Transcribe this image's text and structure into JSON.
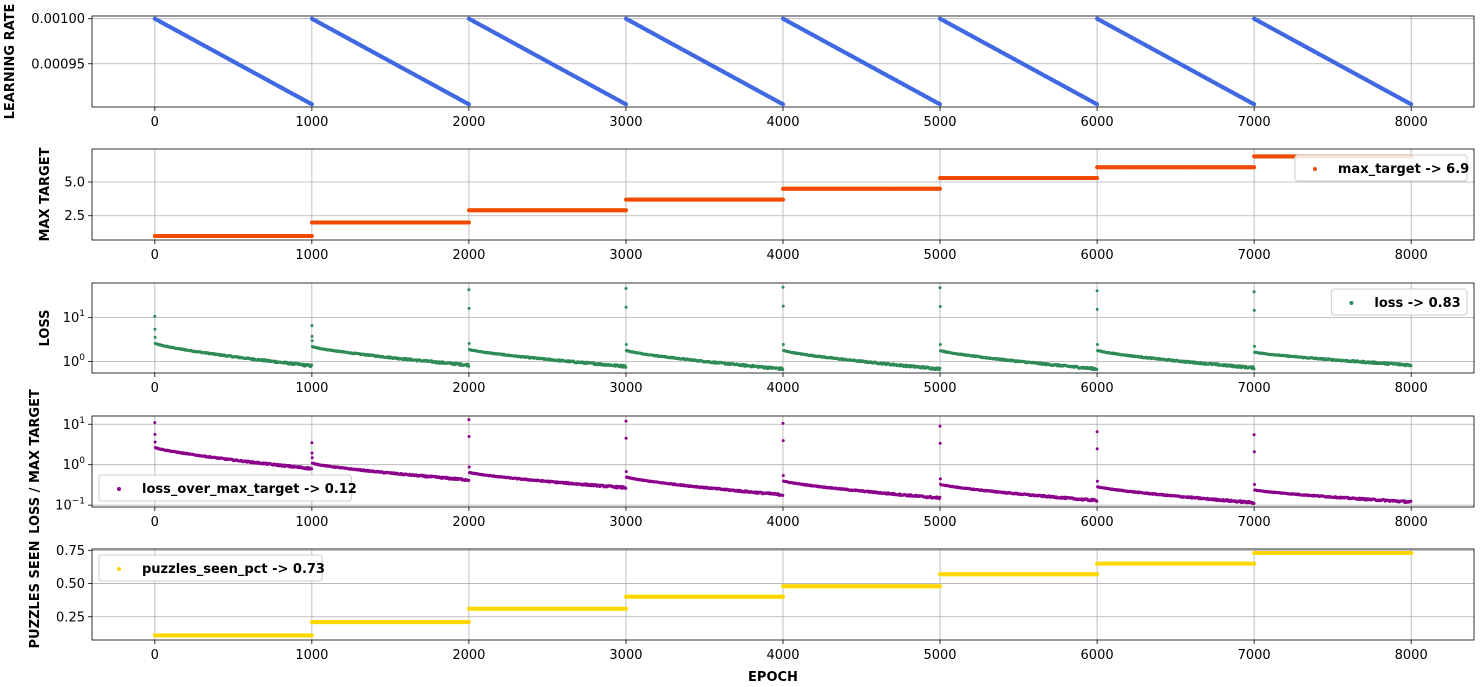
{
  "chart_data": [
    {
      "type": "scatter",
      "ylabel": "LEARNING RATE",
      "xlim": [
        -400,
        8400
      ],
      "ylim": [
        0.000902,
        0.001003
      ],
      "xticks": [
        0,
        1000,
        2000,
        3000,
        4000,
        5000,
        6000,
        7000,
        8000
      ],
      "yticks": [
        0.00095,
        0.001
      ],
      "ytick_labels": [
        "0.00095",
        "0.00100"
      ],
      "yscale": "linear",
      "grid": true,
      "color": "#4169e1",
      "legend": null,
      "cycle_length": 1000,
      "cycles": 8,
      "cycle_start": 0.001,
      "cycle_end": 0.000905
    },
    {
      "type": "scatter",
      "ylabel": "MAX TARGET",
      "xlim": [
        -400,
        8400
      ],
      "ylim": [
        0.7,
        7.45
      ],
      "xticks": [
        0,
        1000,
        2000,
        3000,
        4000,
        5000,
        6000,
        7000,
        8000
      ],
      "yticks": [
        2.5,
        5.0
      ],
      "ytick_labels": [
        "2.5",
        "5.0"
      ],
      "yscale": "linear",
      "grid": true,
      "color": "#f04a00",
      "legend": {
        "label": "max_target -> 6.9",
        "position": "upper-right"
      },
      "steps": [
        1.0,
        2.0,
        2.9,
        3.7,
        4.5,
        5.3,
        6.1,
        6.9
      ]
    },
    {
      "type": "scatter",
      "ylabel": "LOSS",
      "xlim": [
        -400,
        8400
      ],
      "ylim": [
        0.55,
        60
      ],
      "xticks": [
        0,
        1000,
        2000,
        3000,
        4000,
        5000,
        6000,
        7000,
        8000
      ],
      "yticks": [
        1,
        10
      ],
      "ytick_labels": [
        "10^0",
        "10^1"
      ],
      "yscale": "log",
      "grid": true,
      "color": "#2e8b57",
      "legend": {
        "label": "loss -> 0.83",
        "position": "upper-right"
      },
      "cycle_start": [
        2.6,
        2.2,
        1.9,
        1.8,
        1.8,
        1.8,
        1.8,
        1.65
      ],
      "cycle_end": [
        0.8,
        0.83,
        0.78,
        0.68,
        0.68,
        0.68,
        0.72,
        0.83
      ],
      "spikes": [
        10.5,
        6.5,
        42,
        45,
        48,
        47,
        40,
        38
      ]
    },
    {
      "type": "scatter",
      "ylabel": "LOSS / MAX TARGET",
      "xlim": [
        -400,
        8400
      ],
      "ylim": [
        0.09,
        16
      ],
      "xticks": [
        0,
        1000,
        2000,
        3000,
        4000,
        5000,
        6000,
        7000,
        8000
      ],
      "yticks": [
        0.1,
        1,
        10
      ],
      "ytick_labels": [
        "10^-1",
        "10^0",
        "10^1"
      ],
      "yscale": "log",
      "grid": true,
      "color": "#8b008b",
      "legend": {
        "label": "loss_over_max_target -> 0.12",
        "position": "lower-left"
      },
      "cycle_start": [
        2.7,
        1.1,
        0.65,
        0.5,
        0.4,
        0.33,
        0.29,
        0.24
      ],
      "cycle_end": [
        0.8,
        0.42,
        0.27,
        0.18,
        0.15,
        0.13,
        0.115,
        0.12
      ],
      "spikes": [
        11,
        3.5,
        13,
        12,
        10.5,
        9,
        6.5,
        5.5
      ]
    },
    {
      "type": "scatter",
      "ylabel": "PUZZLES SEEN",
      "xlabel": "EPOCH",
      "xlim": [
        -400,
        8400
      ],
      "ylim": [
        0.075,
        0.76
      ],
      "xticks": [
        0,
        1000,
        2000,
        3000,
        4000,
        5000,
        6000,
        7000,
        8000
      ],
      "yticks": [
        0.25,
        0.5,
        0.75
      ],
      "ytick_labels": [
        "0.25",
        "0.50",
        "0.75"
      ],
      "yscale": "linear",
      "grid": true,
      "color": "#ffd700",
      "legend": {
        "label": "puzzles_seen_pct -> 0.73",
        "position": "upper-left"
      },
      "steps": [
        0.11,
        0.21,
        0.31,
        0.4,
        0.48,
        0.57,
        0.65,
        0.73
      ]
    }
  ]
}
